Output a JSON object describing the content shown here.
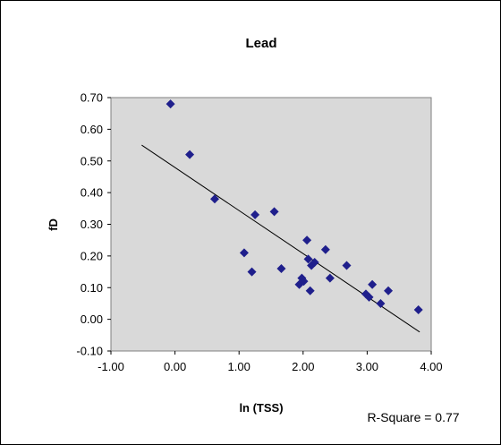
{
  "chart_data": {
    "type": "scatter",
    "title": "Lead",
    "xlabel": "ln (TSS)",
    "ylabel": "fD",
    "xlim": [
      -1.0,
      4.0
    ],
    "ylim": [
      -0.1,
      0.7
    ],
    "x_ticks": [
      "-1.00",
      "0.00",
      "1.00",
      "2.00",
      "3.00",
      "4.00"
    ],
    "y_ticks": [
      "0.70",
      "0.60",
      "0.50",
      "0.40",
      "0.30",
      "0.20",
      "0.10",
      "0.00",
      "-0.10"
    ],
    "grid": false,
    "legend": "none",
    "annotation": "R-Square = 0.77",
    "marker_color": "#1f1f8c",
    "plot_background": "#d9d9d9",
    "points": [
      {
        "x": -0.07,
        "y": 0.68
      },
      {
        "x": 0.23,
        "y": 0.52
      },
      {
        "x": 0.62,
        "y": 0.38
      },
      {
        "x": 1.08,
        "y": 0.21
      },
      {
        "x": 1.2,
        "y": 0.15
      },
      {
        "x": 1.25,
        "y": 0.33
      },
      {
        "x": 1.55,
        "y": 0.34
      },
      {
        "x": 1.66,
        "y": 0.16
      },
      {
        "x": 1.94,
        "y": 0.11
      },
      {
        "x": 1.98,
        "y": 0.13
      },
      {
        "x": 2.01,
        "y": 0.12
      },
      {
        "x": 2.06,
        "y": 0.25
      },
      {
        "x": 2.08,
        "y": 0.19
      },
      {
        "x": 2.11,
        "y": 0.09
      },
      {
        "x": 2.13,
        "y": 0.17
      },
      {
        "x": 2.18,
        "y": 0.18
      },
      {
        "x": 2.35,
        "y": 0.22
      },
      {
        "x": 2.42,
        "y": 0.13
      },
      {
        "x": 2.68,
        "y": 0.17
      },
      {
        "x": 2.98,
        "y": 0.08
      },
      {
        "x": 3.03,
        "y": 0.07
      },
      {
        "x": 3.08,
        "y": 0.11
      },
      {
        "x": 3.21,
        "y": 0.05
      },
      {
        "x": 3.33,
        "y": 0.09
      },
      {
        "x": 3.8,
        "y": 0.03
      }
    ],
    "trendline": {
      "x": [
        -0.52,
        3.82
      ],
      "y": [
        0.55,
        -0.04
      ]
    }
  }
}
